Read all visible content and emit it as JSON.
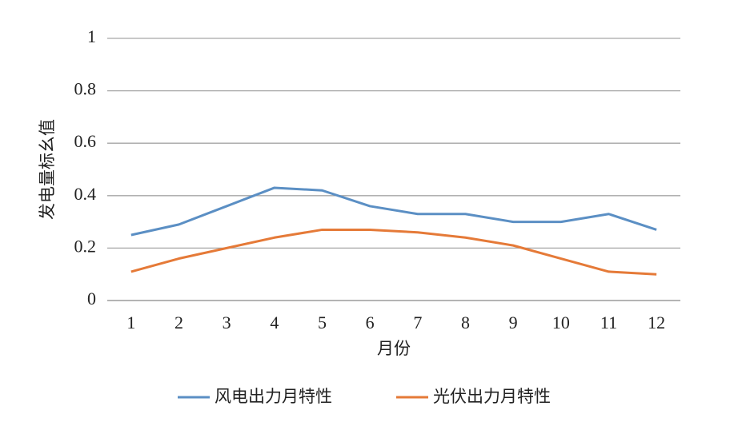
{
  "chart_data": {
    "type": "line",
    "x_label": "月份",
    "y_label": "发电量标幺值",
    "categories": [
      "1",
      "2",
      "3",
      "4",
      "5",
      "6",
      "7",
      "8",
      "9",
      "10",
      "11",
      "12"
    ],
    "series": [
      {
        "name": "风电出力月特性",
        "color": "#5b8fc4",
        "values": [
          0.25,
          0.29,
          0.36,
          0.43,
          0.42,
          0.36,
          0.33,
          0.33,
          0.3,
          0.3,
          0.33,
          0.27
        ]
      },
      {
        "name": "光伏出力月特性",
        "color": "#e57a38",
        "values": [
          0.11,
          0.16,
          0.2,
          0.24,
          0.27,
          0.27,
          0.26,
          0.24,
          0.21,
          0.16,
          0.11,
          0.1
        ]
      }
    ],
    "ylim": [
      0,
      1
    ],
    "yticks": [
      0,
      0.2,
      0.4,
      0.6,
      0.8,
      1
    ],
    "grid": true,
    "legend": "bottom"
  }
}
